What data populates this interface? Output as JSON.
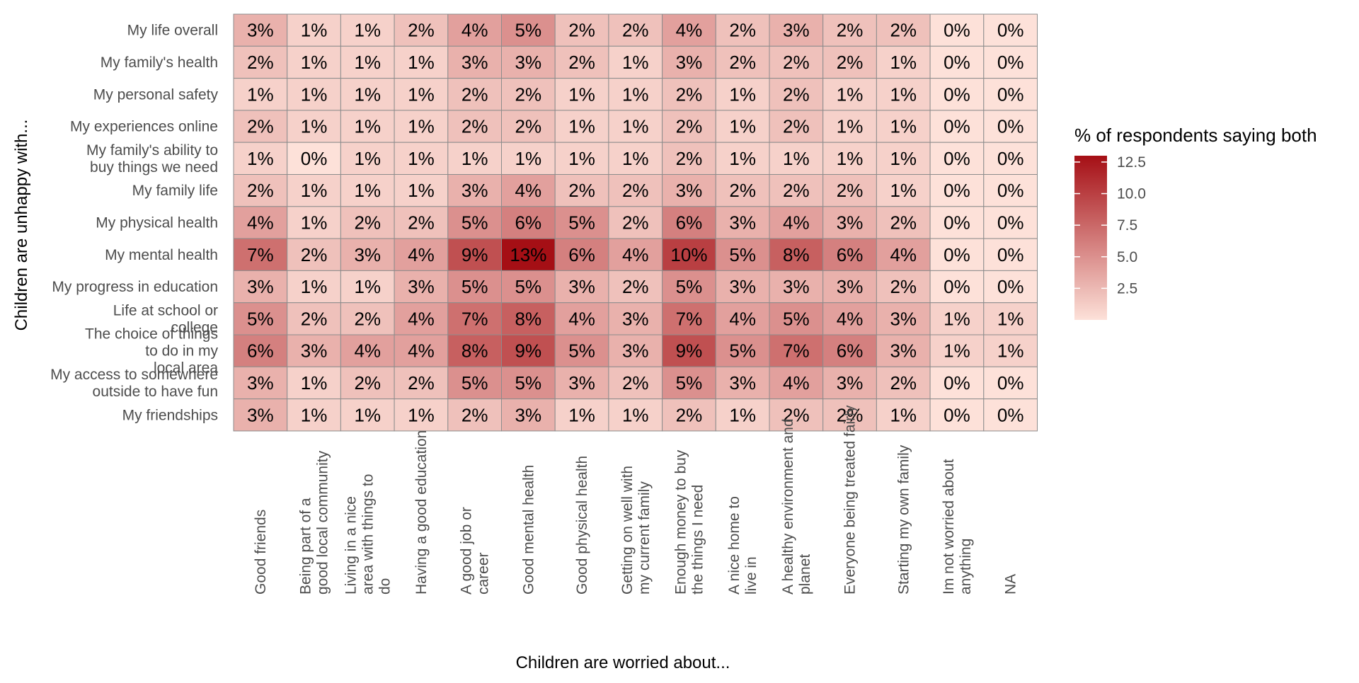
{
  "chart_data": {
    "type": "heatmap",
    "title": "",
    "xlabel": "Children are worried about...",
    "ylabel": "Children are unhappy with...",
    "x_categories": [
      [
        "Good friends"
      ],
      [
        "Being part of a",
        "good local community"
      ],
      [
        "Living in a nice",
        "area with things to",
        "do"
      ],
      [
        "Having a good education"
      ],
      [
        "A good job or",
        "career"
      ],
      [
        "Good mental health"
      ],
      [
        "Good physical health"
      ],
      [
        "Getting on well with",
        "my current family"
      ],
      [
        "Enough money to buy",
        "the things I need"
      ],
      [
        "A nice home to",
        "live in"
      ],
      [
        "A healthy environment and",
        "planet"
      ],
      [
        "Everyone being treated fairly"
      ],
      [
        "Starting my own family"
      ],
      [
        "Im not worried about",
        "anything"
      ],
      [
        "NA"
      ]
    ],
    "y_categories": [
      [
        "My life overall"
      ],
      [
        "My family's health"
      ],
      [
        "My personal safety"
      ],
      [
        "My experiences online"
      ],
      [
        "My family's ability to",
        "buy things we need"
      ],
      [
        "My family life"
      ],
      [
        "My physical health"
      ],
      [
        "My mental health"
      ],
      [
        "My progress in education"
      ],
      [
        "Life at school or",
        "college"
      ],
      [
        "The choice of things",
        "to do in my",
        "local area"
      ],
      [
        "My access to somewhere",
        "outside to have fun"
      ],
      [
        "My friendships"
      ]
    ],
    "values": [
      [
        3,
        1,
        1,
        2,
        4,
        5,
        2,
        2,
        4,
        2,
        3,
        2,
        2,
        0,
        0
      ],
      [
        2,
        1,
        1,
        1,
        3,
        3,
        2,
        1,
        3,
        2,
        2,
        2,
        1,
        0,
        0
      ],
      [
        1,
        1,
        1,
        1,
        2,
        2,
        1,
        1,
        2,
        1,
        2,
        1,
        1,
        0,
        0
      ],
      [
        2,
        1,
        1,
        1,
        2,
        2,
        1,
        1,
        2,
        1,
        2,
        1,
        1,
        0,
        0
      ],
      [
        1,
        0,
        1,
        1,
        1,
        1,
        1,
        1,
        2,
        1,
        1,
        1,
        1,
        0,
        0
      ],
      [
        2,
        1,
        1,
        1,
        3,
        4,
        2,
        2,
        3,
        2,
        2,
        2,
        1,
        0,
        0
      ],
      [
        4,
        1,
        2,
        2,
        5,
        6,
        5,
        2,
        6,
        3,
        4,
        3,
        2,
        0,
        0
      ],
      [
        7,
        2,
        3,
        4,
        9,
        13,
        6,
        4,
        10,
        5,
        8,
        6,
        4,
        0,
        0
      ],
      [
        3,
        1,
        1,
        3,
        5,
        5,
        3,
        2,
        5,
        3,
        3,
        3,
        2,
        0,
        0
      ],
      [
        5,
        2,
        2,
        4,
        7,
        8,
        4,
        3,
        7,
        4,
        5,
        4,
        3,
        1,
        1
      ],
      [
        6,
        3,
        4,
        4,
        8,
        9,
        5,
        3,
        9,
        5,
        7,
        6,
        3,
        1,
        1
      ],
      [
        3,
        1,
        2,
        2,
        5,
        5,
        3,
        2,
        5,
        3,
        4,
        3,
        2,
        0,
        0
      ],
      [
        3,
        1,
        1,
        1,
        2,
        3,
        1,
        1,
        2,
        1,
        2,
        2,
        1,
        0,
        0
      ]
    ],
    "value_suffix": "%",
    "legend": {
      "title": "% of respondents saying both",
      "ticks": [
        2.5,
        5.0,
        7.5,
        10.0,
        12.5
      ],
      "tick_labels": [
        "2.5",
        "5.0",
        "7.5",
        "10.0",
        "12.5"
      ],
      "range": [
        0,
        13
      ],
      "placement": "right"
    },
    "colors": {
      "low": "#fde1d9",
      "high": "#a50f15",
      "cell_border": "#8c8c8c",
      "text": "#000000",
      "axis_text": "#4d4d4d"
    }
  }
}
